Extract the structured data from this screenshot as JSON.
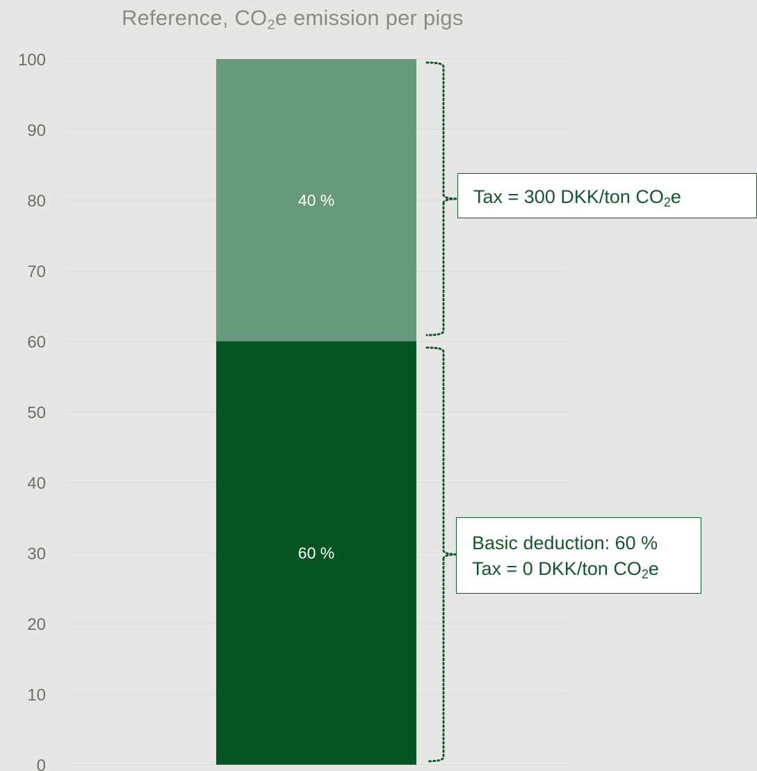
{
  "chart_data": {
    "type": "bar",
    "stacked": true,
    "title": {
      "prefix": "Reference, CO",
      "subscript": "2",
      "suffix": "e emission per pigs"
    },
    "categories": [
      ""
    ],
    "series": [
      {
        "values": [
          60
        ],
        "data_label": "60 %",
        "color": "#045522"
      },
      {
        "values": [
          40
        ],
        "data_label": "40 %",
        "color": "#66997a"
      }
    ],
    "y_ticks": [
      "0",
      "10",
      "20",
      "30",
      "40",
      "50",
      "60",
      "70",
      "80",
      "90",
      "100"
    ],
    "ylim": [
      0,
      100
    ],
    "grid": true,
    "annotations": [
      {
        "range": [
          60,
          100
        ],
        "lines": [
          {
            "text": "Tax = 300 DKK/ton CO",
            "subscript": "2",
            "suffix": "e"
          }
        ]
      },
      {
        "range": [
          0,
          60
        ],
        "lines": [
          {
            "text": "Basic deduction: 60 %",
            "subscript": "",
            "suffix": ""
          },
          {
            "text": "Tax = 0 DKK/ton CO",
            "subscript": "2",
            "suffix": "e"
          }
        ]
      }
    ],
    "colors": {
      "background": "#e6e6e4",
      "axis_text": "#6d6d6a",
      "title_text": "#8a8a83",
      "annotation": "#14562c",
      "gridline": "#dcdcda"
    }
  }
}
